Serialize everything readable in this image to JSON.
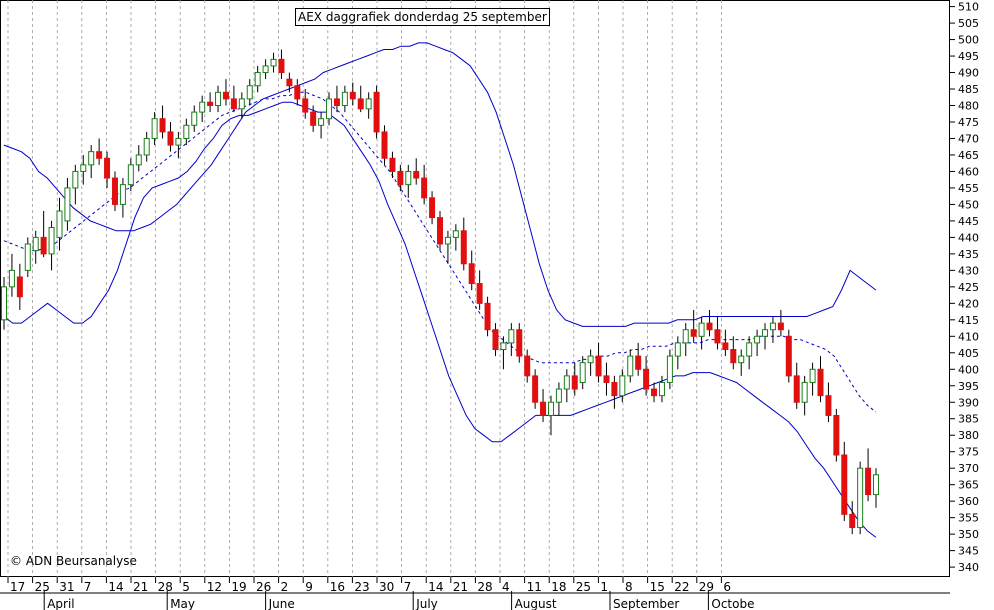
{
  "chart_data": {
    "type": "candlestick",
    "title": "AEX daggrafiek donderdag 25 september",
    "copyright": "© ADN Beursanalyse",
    "y_range": [
      337,
      512
    ],
    "y_ticks": [
      340,
      345,
      350,
      355,
      360,
      365,
      370,
      375,
      380,
      385,
      390,
      395,
      400,
      405,
      410,
      415,
      420,
      425,
      430,
      435,
      440,
      445,
      450,
      455,
      460,
      465,
      470,
      475,
      480,
      485,
      490,
      495,
      500,
      505,
      510
    ],
    "x_ticks": [
      "17",
      "25",
      "31",
      "7",
      "14",
      "21",
      "28",
      "5",
      "12",
      "19",
      "26",
      "2",
      "9",
      "16",
      "23",
      "30",
      "7",
      "14",
      "21",
      "28",
      "4",
      "11",
      "18",
      "25",
      "1",
      "8",
      "15",
      "22",
      "29",
      "6"
    ],
    "months": [
      "April",
      "May",
      "June",
      "July",
      "August",
      "September",
      "Octobe"
    ],
    "grid": true,
    "colors": {
      "up": "#1a7f1a",
      "down": "#e01010",
      "band": "#0000cc",
      "wick": "#000000"
    },
    "candles": [
      [
        415,
        428,
        412,
        425
      ],
      [
        425,
        435,
        422,
        430
      ],
      [
        428,
        432,
        418,
        422
      ],
      [
        430,
        440,
        428,
        438
      ],
      [
        436,
        442,
        432,
        440
      ],
      [
        440,
        448,
        434,
        435
      ],
      [
        435,
        445,
        430,
        443
      ],
      [
        440,
        452,
        436,
        448
      ],
      [
        445,
        458,
        442,
        455
      ],
      [
        455,
        462,
        450,
        460
      ],
      [
        460,
        465,
        456,
        462
      ],
      [
        462,
        468,
        458,
        466
      ],
      [
        466,
        470,
        462,
        464
      ],
      [
        464,
        466,
        455,
        458
      ],
      [
        458,
        460,
        448,
        450
      ],
      [
        450,
        458,
        446,
        456
      ],
      [
        456,
        464,
        454,
        462
      ],
      [
        462,
        468,
        460,
        465
      ],
      [
        465,
        472,
        463,
        470
      ],
      [
        470,
        478,
        468,
        476
      ],
      [
        476,
        480,
        470,
        472
      ],
      [
        472,
        475,
        466,
        468
      ],
      [
        468,
        472,
        464,
        470
      ],
      [
        470,
        476,
        468,
        474
      ],
      [
        474,
        480,
        472,
        478
      ],
      [
        478,
        483,
        475,
        481
      ],
      [
        481,
        484,
        478,
        480
      ],
      [
        480,
        486,
        478,
        484
      ],
      [
        484,
        488,
        480,
        482
      ],
      [
        482,
        486,
        478,
        479
      ],
      [
        479,
        484,
        476,
        482
      ],
      [
        482,
        488,
        480,
        486
      ],
      [
        486,
        492,
        484,
        490
      ],
      [
        490,
        494,
        488,
        492
      ],
      [
        492,
        496,
        490,
        494
      ],
      [
        494,
        497,
        488,
        490
      ],
      [
        488,
        490,
        484,
        486
      ],
      [
        486,
        488,
        480,
        482
      ],
      [
        482,
        485,
        476,
        478
      ],
      [
        478,
        480,
        472,
        474
      ],
      [
        474,
        478,
        470,
        476
      ],
      [
        476,
        484,
        474,
        482
      ],
      [
        482,
        486,
        478,
        480
      ],
      [
        480,
        486,
        478,
        484
      ],
      [
        484,
        487,
        480,
        482
      ],
      [
        482,
        486,
        478,
        479
      ],
      [
        479,
        484,
        476,
        482
      ],
      [
        484,
        486,
        470,
        472
      ],
      [
        472,
        474,
        462,
        464
      ],
      [
        464,
        466,
        458,
        460
      ],
      [
        460,
        462,
        454,
        456
      ],
      [
        456,
        462,
        452,
        460
      ],
      [
        460,
        464,
        456,
        458
      ],
      [
        458,
        462,
        450,
        452
      ],
      [
        452,
        454,
        444,
        446
      ],
      [
        446,
        448,
        436,
        438
      ],
      [
        438,
        442,
        432,
        440
      ],
      [
        440,
        444,
        436,
        442
      ],
      [
        442,
        446,
        430,
        432
      ],
      [
        432,
        436,
        424,
        426
      ],
      [
        426,
        430,
        418,
        420
      ],
      [
        420,
        422,
        410,
        412
      ],
      [
        412,
        414,
        404,
        406
      ],
      [
        406,
        410,
        400,
        408
      ],
      [
        408,
        414,
        404,
        412
      ],
      [
        412,
        414,
        402,
        404
      ],
      [
        404,
        406,
        396,
        398
      ],
      [
        398,
        400,
        388,
        390
      ],
      [
        390,
        394,
        384,
        386
      ],
      [
        386,
        392,
        380,
        390
      ],
      [
        390,
        396,
        386,
        394
      ],
      [
        394,
        400,
        390,
        398
      ],
      [
        398,
        402,
        392,
        394
      ],
      [
        396,
        404,
        394,
        402
      ],
      [
        402,
        406,
        398,
        404
      ],
      [
        404,
        408,
        396,
        398
      ],
      [
        398,
        402,
        392,
        396
      ],
      [
        396,
        398,
        388,
        392
      ],
      [
        392,
        400,
        390,
        398
      ],
      [
        398,
        406,
        396,
        404
      ],
      [
        404,
        408,
        398,
        400
      ],
      [
        400,
        404,
        392,
        394
      ],
      [
        394,
        396,
        390,
        392
      ],
      [
        392,
        398,
        390,
        396
      ],
      [
        396,
        406,
        394,
        404
      ],
      [
        404,
        410,
        400,
        408
      ],
      [
        408,
        414,
        404,
        412
      ],
      [
        412,
        418,
        408,
        410
      ],
      [
        410,
        416,
        406,
        414
      ],
      [
        414,
        418,
        410,
        412
      ],
      [
        412,
        416,
        406,
        408
      ],
      [
        408,
        412,
        404,
        406
      ],
      [
        406,
        410,
        400,
        402
      ],
      [
        402,
        406,
        398,
        404
      ],
      [
        404,
        410,
        400,
        408
      ],
      [
        408,
        412,
        404,
        410
      ],
      [
        410,
        414,
        406,
        412
      ],
      [
        412,
        416,
        408,
        414
      ],
      [
        414,
        418,
        410,
        412
      ],
      [
        410,
        412,
        396,
        398
      ],
      [
        398,
        402,
        388,
        390
      ],
      [
        390,
        398,
        386,
        396
      ],
      [
        396,
        402,
        392,
        400
      ],
      [
        400,
        404,
        390,
        392
      ],
      [
        392,
        396,
        384,
        386
      ],
      [
        386,
        388,
        372,
        374
      ],
      [
        374,
        378,
        354,
        356
      ],
      [
        356,
        360,
        350,
        352
      ],
      [
        352,
        372,
        350,
        370
      ],
      [
        370,
        376,
        360,
        362
      ],
      [
        362,
        370,
        358,
        368
      ]
    ],
    "band_upper": [
      468,
      467,
      466,
      464,
      460,
      458,
      455,
      452,
      449,
      447,
      445,
      444,
      443,
      442,
      442,
      442,
      443,
      444,
      446,
      448,
      450,
      453,
      456,
      459,
      462,
      466,
      470,
      474,
      478,
      480,
      482,
      483,
      484,
      485,
      486,
      487,
      488,
      490,
      491,
      492,
      493,
      494,
      495,
      496,
      497,
      497,
      498,
      498,
      499,
      499,
      498,
      497,
      496,
      494,
      492,
      488,
      484,
      478,
      470,
      462,
      452,
      442,
      432,
      424,
      418,
      415,
      414,
      413,
      413,
      413,
      413,
      413,
      413,
      414,
      414,
      414,
      414,
      414,
      415,
      415,
      415,
      416,
      416,
      416,
      416,
      416,
      416,
      416,
      416,
      416,
      416,
      416,
      416,
      416,
      417,
      418,
      419,
      424,
      430,
      428,
      426,
      424
    ],
    "band_middle": [
      439,
      438,
      437,
      436,
      436,
      437,
      438,
      440,
      442,
      444,
      446,
      448,
      450,
      452,
      454,
      455,
      457,
      459,
      461,
      463,
      465,
      467,
      469,
      471,
      473,
      475,
      477,
      478,
      479,
      480,
      481,
      482,
      482,
      483,
      483,
      484,
      484,
      483,
      482,
      480,
      478,
      475,
      472,
      469,
      466,
      463,
      460,
      456,
      452,
      448,
      444,
      440,
      436,
      432,
      428,
      424,
      420,
      416,
      412,
      410,
      408,
      406,
      404,
      403,
      402,
      402,
      402,
      402,
      402,
      403,
      403,
      404,
      404,
      405,
      405,
      406,
      406,
      407,
      407,
      407,
      408,
      408,
      408,
      408,
      409,
      409,
      409,
      409,
      409,
      409,
      410,
      410,
      410,
      410,
      409,
      409,
      408,
      407,
      406,
      404,
      400,
      396,
      392,
      389,
      387
    ],
    "band_lower": [
      416,
      414,
      414,
      416,
      418,
      420,
      418,
      416,
      414,
      414,
      416,
      420,
      424,
      430,
      438,
      446,
      452,
      455,
      456,
      457,
      458,
      460,
      463,
      467,
      470,
      474,
      476,
      477,
      477,
      478,
      479,
      480,
      481,
      481,
      480,
      479,
      478,
      478,
      476,
      474,
      470,
      466,
      462,
      457,
      450,
      444,
      438,
      430,
      422,
      414,
      406,
      398,
      392,
      386,
      382,
      380,
      378,
      378,
      380,
      382,
      384,
      386,
      386,
      386,
      386,
      386,
      387,
      388,
      389,
      390,
      391,
      392,
      393,
      394,
      395,
      396,
      397,
      398,
      398,
      399,
      399,
      399,
      398,
      397,
      396,
      394,
      392,
      390,
      388,
      386,
      384,
      381,
      377,
      373,
      370,
      366,
      362,
      358,
      354,
      351,
      349
    ],
    "start_index": 0
  }
}
